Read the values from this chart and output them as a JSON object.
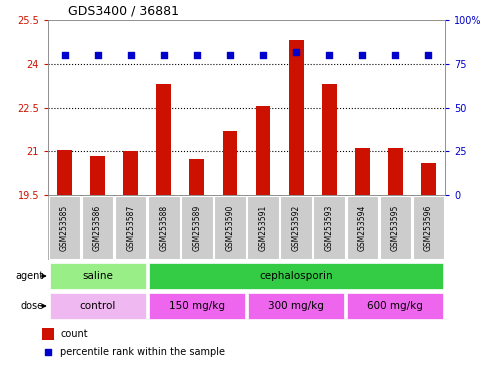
{
  "title": "GDS3400 / 36881",
  "samples": [
    "GSM253585",
    "GSM253586",
    "GSM253587",
    "GSM253588",
    "GSM253589",
    "GSM253590",
    "GSM253591",
    "GSM253592",
    "GSM253593",
    "GSM253594",
    "GSM253595",
    "GSM253596"
  ],
  "bar_values": [
    21.05,
    20.85,
    21.0,
    23.3,
    20.75,
    21.7,
    22.55,
    24.8,
    23.3,
    21.1,
    21.1,
    20.6
  ],
  "percentile_values": [
    80,
    80,
    80,
    80,
    80,
    80,
    80,
    82,
    80,
    80,
    80,
    80
  ],
  "bar_color": "#cc1100",
  "percentile_color": "#0000cc",
  "ymin": 19.5,
  "ymax": 25.5,
  "yticks": [
    19.5,
    21.0,
    22.5,
    24.0,
    25.5
  ],
  "ytick_labels": [
    "19.5",
    "21",
    "22.5",
    "24",
    "25.5"
  ],
  "y2min": 0,
  "y2max": 100,
  "y2ticks": [
    0,
    25,
    50,
    75,
    100
  ],
  "y2tick_labels": [
    "0",
    "25",
    "50",
    "75",
    "100%"
  ],
  "dotted_lines": [
    21.0,
    22.5,
    24.0
  ],
  "agent_groups": [
    {
      "label": "saline",
      "start": 0,
      "end": 3,
      "color": "#99ee88"
    },
    {
      "label": "cephalosporin",
      "start": 3,
      "end": 12,
      "color": "#33cc44"
    }
  ],
  "dose_groups": [
    {
      "label": "control",
      "start": 0,
      "end": 3,
      "color": "#f0b8f0"
    },
    {
      "label": "150 mg/kg",
      "start": 3,
      "end": 6,
      "color": "#ee66ee"
    },
    {
      "label": "300 mg/kg",
      "start": 6,
      "end": 9,
      "color": "#ee66ee"
    },
    {
      "label": "600 mg/kg",
      "start": 9,
      "end": 12,
      "color": "#ee66ee"
    }
  ],
  "legend_count_color": "#cc1100",
  "legend_percentile_color": "#0000cc",
  "background_color": "#ffffff",
  "tick_bg_color": "#cccccc",
  "border_color": "#888888"
}
